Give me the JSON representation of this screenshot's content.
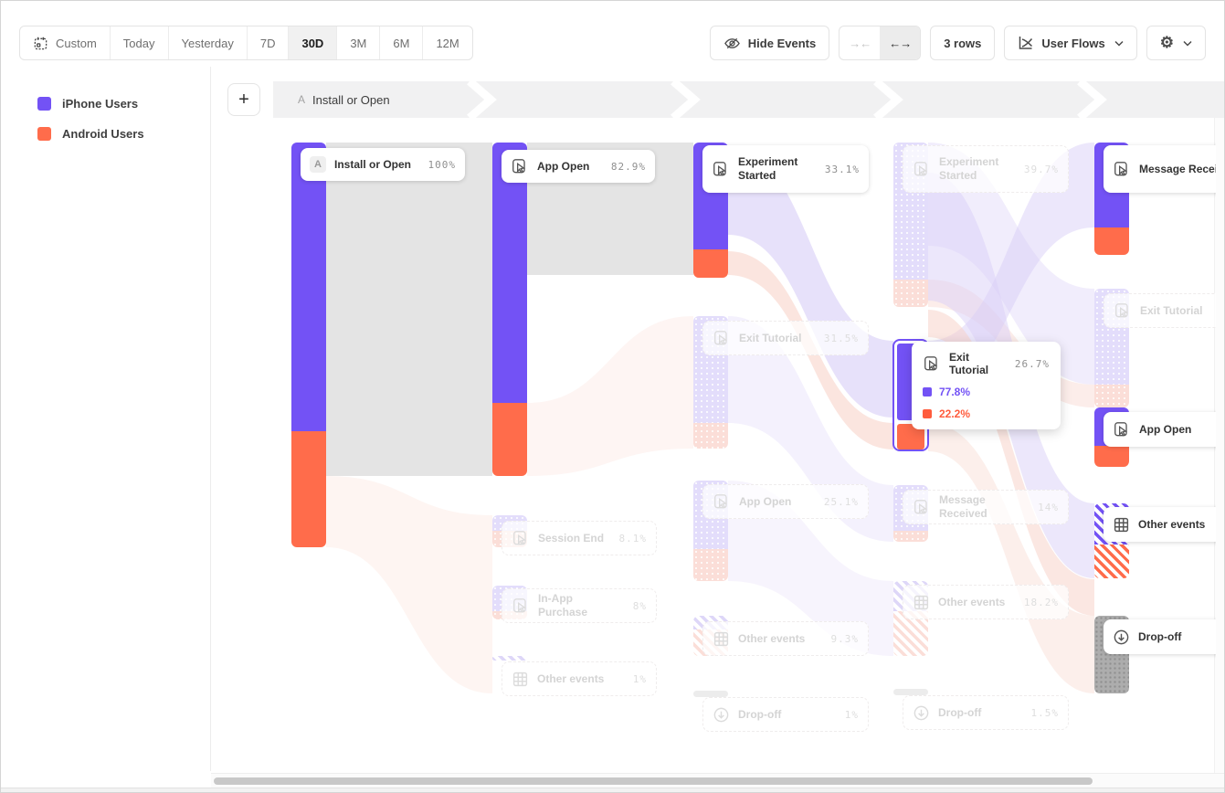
{
  "toolbar": {
    "date_ranges": [
      "Custom",
      "Today",
      "Yesterday",
      "7D",
      "30D",
      "3M",
      "6M",
      "12M"
    ],
    "active_range": "30D",
    "hide_events_label": "Hide Events",
    "collapse_icon": "→←",
    "expand_icon": "←→",
    "rows_label": "3 rows",
    "view_type_label": "User Flows"
  },
  "legend": {
    "items": [
      {
        "label": "iPhone Users",
        "color": "#7352f5"
      },
      {
        "label": "Android Users",
        "color": "#ff6c4b"
      }
    ]
  },
  "step_header": {
    "letter": "A",
    "label": "Install or Open"
  },
  "tooltip": {
    "title": "Exit Tutorial",
    "pct": "26.7%",
    "breakdown": [
      {
        "pct": "77.8%",
        "color": "#7352f5"
      },
      {
        "pct": "22.2%",
        "color": "#ff5c3d"
      }
    ]
  },
  "chart_data": {
    "type": "sankey",
    "unit": "percent of users reaching each step",
    "series_colors": {
      "iPhone Users": "#7352f5",
      "Android Users": "#ff6c4b"
    },
    "columns": [
      {
        "nodes": [
          {
            "label": "Install or Open",
            "pct": "100%",
            "icon": "letter",
            "state": "active"
          }
        ]
      },
      {
        "nodes": [
          {
            "label": "App Open",
            "pct": "82.9%",
            "icon": "event",
            "state": "active"
          },
          {
            "label": "Session End",
            "pct": "8.1%",
            "icon": "event",
            "state": "faded"
          },
          {
            "label": "In-App Purchase",
            "pct": "8%",
            "icon": "event",
            "state": "faded"
          },
          {
            "label": "Other events",
            "pct": "1%",
            "icon": "grid",
            "state": "faded"
          }
        ]
      },
      {
        "nodes": [
          {
            "label": "Experiment Started",
            "pct": "33.1%",
            "icon": "event",
            "state": "active"
          },
          {
            "label": "Exit Tutorial",
            "pct": "31.5%",
            "icon": "event",
            "state": "faded"
          },
          {
            "label": "App Open",
            "pct": "25.1%",
            "icon": "event",
            "state": "faded"
          },
          {
            "label": "Other events",
            "pct": "9.3%",
            "icon": "grid",
            "state": "faded"
          },
          {
            "label": "Drop-off",
            "pct": "1%",
            "icon": "dropoff",
            "state": "faded"
          }
        ]
      },
      {
        "nodes": [
          {
            "label": "Experiment Started",
            "pct": "39.7%",
            "icon": "event",
            "state": "faded"
          },
          {
            "label": "Exit Tutorial",
            "pct": "26.7%",
            "icon": "event",
            "state": "hovered"
          },
          {
            "label": "Message Received",
            "pct": "14%",
            "icon": "event",
            "state": "faded"
          },
          {
            "label": "Other events",
            "pct": "18.2%",
            "icon": "grid",
            "state": "faded"
          },
          {
            "label": "Drop-off",
            "pct": "1.5%",
            "icon": "dropoff",
            "state": "faded"
          }
        ]
      },
      {
        "nodes": [
          {
            "label": "Message Received",
            "pct": "",
            "icon": "event",
            "state": "active"
          },
          {
            "label": "Exit Tutorial",
            "pct": "",
            "icon": "event",
            "state": "faded"
          },
          {
            "label": "App Open",
            "pct": "",
            "icon": "event",
            "state": "active"
          },
          {
            "label": "Other events",
            "pct": "",
            "icon": "grid",
            "state": "active"
          },
          {
            "label": "Drop-off",
            "pct": "",
            "icon": "dropoff",
            "state": "active"
          }
        ]
      }
    ]
  }
}
